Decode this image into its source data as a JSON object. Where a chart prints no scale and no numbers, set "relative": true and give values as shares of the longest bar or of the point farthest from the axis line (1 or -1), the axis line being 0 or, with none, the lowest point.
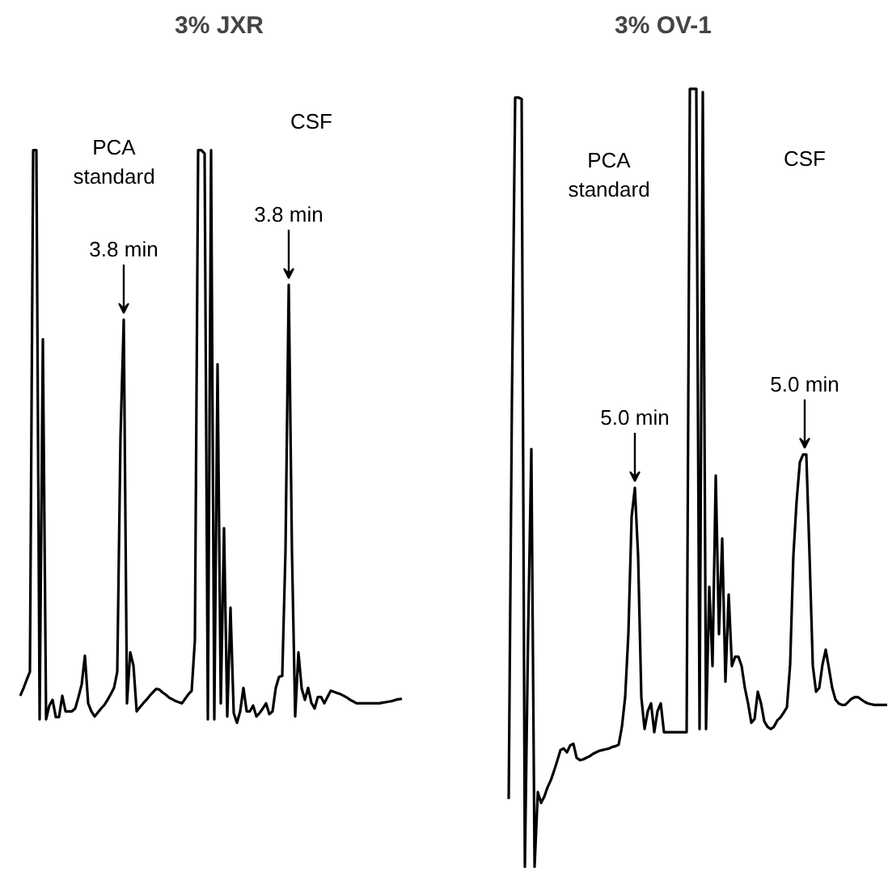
{
  "chart_data": [
    {
      "type": "line",
      "title": "3% JXR",
      "relative": true,
      "line_style": "solid",
      "categories": [
        null,
        null,
        null,
        null,
        null,
        null,
        null,
        null,
        null,
        null,
        null,
        null,
        null,
        null,
        null,
        null,
        null,
        null,
        null,
        null,
        null,
        null,
        null,
        null,
        null,
        null,
        null,
        null,
        null,
        null,
        null,
        null,
        null,
        null,
        null,
        null,
        null,
        null,
        null,
        null,
        null,
        null,
        null,
        null,
        null,
        null,
        null,
        null,
        null,
        null,
        null,
        null,
        null,
        null,
        null,
        null,
        null,
        null,
        null,
        null,
        null,
        null,
        null,
        null,
        null,
        null,
        null,
        null,
        null,
        null,
        null,
        null,
        null,
        null,
        null,
        null,
        null,
        null,
        null,
        null,
        null,
        null,
        null,
        null,
        null,
        null,
        null,
        null,
        null,
        null,
        null,
        null,
        null,
        null,
        null,
        null,
        null,
        null,
        null,
        null,
        null,
        null,
        null,
        null,
        null,
        null,
        null,
        null,
        null,
        null,
        null,
        null,
        null,
        null,
        null,
        null,
        null,
        null,
        null
      ],
      "series": [
        {
          "color": "#000000",
          "values": [
            0.047,
            0.06,
            0.075,
            0.089,
            1.0,
            1.0,
            0.006,
            0.67,
            0.006,
            0.03,
            0.04,
            0.01,
            0.01,
            0.047,
            0.02,
            0.02,
            0.02,
            0.025,
            0.045,
            0.067,
            0.117,
            0.034,
            0.02,
            0.011,
            0.018,
            0.025,
            0.031,
            0.04,
            0.05,
            0.061,
            0.089,
            0.5,
            0.704,
            0.034,
            0.123,
            0.1,
            0.02,
            0.027,
            0.034,
            0.04,
            0.047,
            0.053,
            0.059,
            0.058,
            0.053,
            0.049,
            0.044,
            0.041,
            0.038,
            0.036,
            0.034,
            0.042,
            0.05,
            0.056,
            0.145,
            1.0,
            1.0,
            0.994,
            0.006,
            1.0,
            0.006,
            0.626,
            0.034,
            0.34,
            0.011,
            0.201,
            0.017,
            0.0,
            0.02,
            0.061,
            0.02,
            0.02,
            0.03,
            0.011,
            0.017,
            0.025,
            0.034,
            0.015,
            0.02,
            0.061,
            0.08,
            0.082,
            0.3,
            0.765,
            0.3,
            0.011,
            0.123,
            0.06,
            0.04,
            0.061,
            0.035,
            0.025,
            0.045,
            0.045,
            0.034,
            0.045,
            0.056,
            0.054,
            0.052,
            0.05,
            0.047,
            0.044,
            0.04,
            0.037,
            0.034,
            0.034,
            0.034,
            0.034,
            0.034,
            0.034,
            0.034,
            0.034,
            0.035,
            0.036,
            0.037,
            0.038,
            0.04,
            0.041,
            0.042
          ]
        }
      ],
      "annotations": [
        "PCA\nstandard",
        "CSF",
        "3.8 min",
        "3.8 min"
      ]
    },
    {
      "type": "line",
      "title": "3% OV-1",
      "relative": true,
      "line_style": "solid",
      "categories": [
        null,
        null,
        null,
        null,
        null,
        null,
        null,
        null,
        null,
        null,
        null,
        null,
        null,
        null,
        null,
        null,
        null,
        null,
        null,
        null,
        null,
        null,
        null,
        null,
        null,
        null,
        null,
        null,
        null,
        null,
        null,
        null,
        null,
        null,
        null,
        null,
        null,
        null,
        null,
        null,
        null,
        null,
        null,
        null,
        null,
        null,
        null,
        null,
        null,
        null,
        null,
        null,
        null,
        null,
        null,
        null,
        null,
        null,
        null,
        null,
        null,
        null,
        null,
        null,
        null,
        null,
        null,
        null,
        null,
        null,
        null,
        null,
        null,
        null,
        null,
        null,
        null,
        null,
        null,
        null,
        null,
        null,
        null,
        null,
        null,
        null,
        null,
        null,
        null,
        null,
        null,
        null,
        null,
        null,
        null,
        null,
        null,
        null,
        null,
        null,
        null,
        null,
        null,
        null,
        null,
        null,
        null,
        null,
        null,
        null,
        null,
        null,
        null,
        null,
        null,
        null,
        null,
        null
      ],
      "series": [
        {
          "color": "#000000",
          "values": [
            0.087,
            0.6,
            0.989,
            0.989,
            0.987,
            0.0,
            0.3,
            0.537,
            0.0,
            0.096,
            0.082,
            0.09,
            0.102,
            0.111,
            0.123,
            0.136,
            0.15,
            0.152,
            0.147,
            0.156,
            0.158,
            0.14,
            0.137,
            0.138,
            0.14,
            0.142,
            0.145,
            0.147,
            0.149,
            0.15,
            0.151,
            0.152,
            0.154,
            0.155,
            0.157,
            0.18,
            0.218,
            0.3,
            0.45,
            0.487,
            0.4,
            0.218,
            0.177,
            0.2,
            0.21,
            0.173,
            0.2,
            0.21,
            0.173,
            0.173,
            0.173,
            0.173,
            0.173,
            0.173,
            0.173,
            0.173,
            1.0,
            1.0,
            1.0,
            0.177,
            0.996,
            0.177,
            0.36,
            0.258,
            0.503,
            0.299,
            0.422,
            0.238,
            0.35,
            0.258,
            0.27,
            0.27,
            0.258,
            0.23,
            0.21,
            0.185,
            0.19,
            0.225,
            0.21,
            0.187,
            0.18,
            0.177,
            0.18,
            0.188,
            0.192,
            0.198,
            0.205,
            0.26,
            0.4,
            0.47,
            0.52,
            0.53,
            0.53,
            0.4,
            0.259,
            0.225,
            0.23,
            0.26,
            0.279,
            0.255,
            0.23,
            0.215,
            0.21,
            0.208,
            0.208,
            0.212,
            0.216,
            0.218,
            0.218,
            0.215,
            0.212,
            0.21,
            0.209,
            0.208,
            0.208,
            0.208,
            0.208,
            0.208
          ]
        }
      ],
      "annotations": [
        "PCA\nstandard",
        "CSF",
        "5.0 min",
        "5.0 min"
      ]
    }
  ]
}
